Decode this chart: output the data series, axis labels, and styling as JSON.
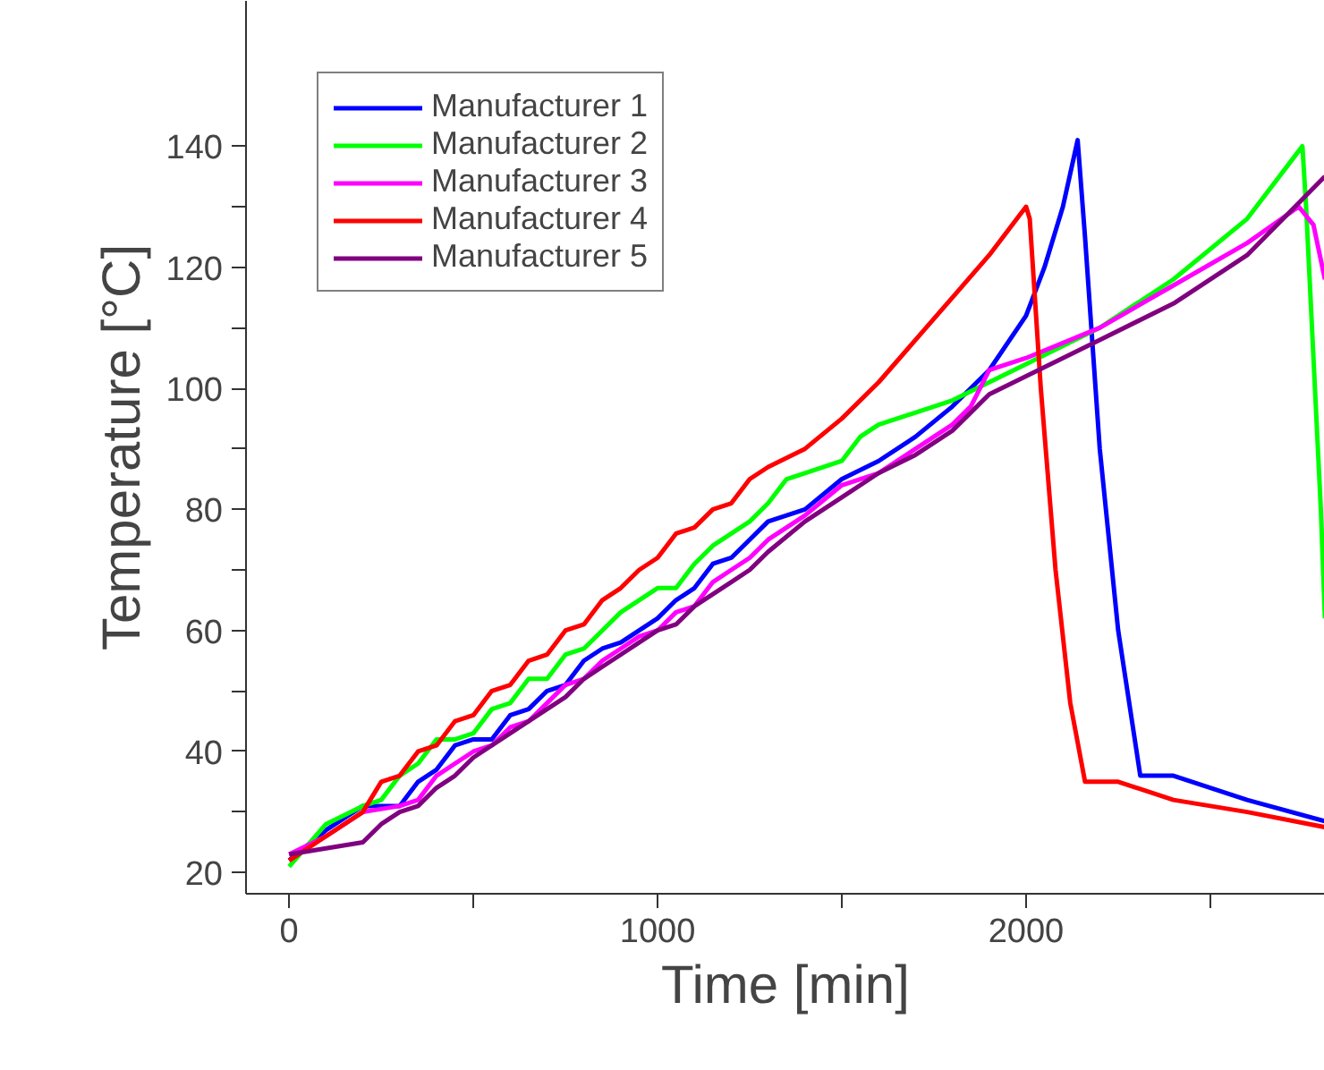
{
  "chart_data": {
    "type": "line",
    "xlabel": "Time [min]",
    "ylabel": "Temperature [°C]",
    "xlim": [
      -117,
      2811
    ],
    "ylim": [
      16.5,
      164
    ],
    "xticks": [
      0,
      {
        "value": 500,
        "label": null
      },
      1000,
      {
        "value": 1500,
        "label": null
      },
      2000,
      {
        "value": 2500,
        "label": null
      }
    ],
    "yticks": [
      20,
      {
        "value": 30,
        "label": null
      },
      40,
      {
        "value": 50,
        "label": null
      },
      60,
      {
        "value": 70,
        "label": null
      },
      80,
      {
        "value": 90,
        "label": null
      },
      100,
      {
        "value": 110,
        "label": null
      },
      120,
      {
        "value": 130,
        "label": null
      },
      140
    ],
    "grid": false,
    "legend": "top left",
    "line_style": "solid",
    "marker": "none",
    "series": [
      {
        "name": "Manufacturer 1",
        "color": "#0000ff",
        "x": [
          0,
          100,
          200,
          300,
          350,
          400,
          450,
          500,
          550,
          600,
          650,
          700,
          750,
          800,
          850,
          900,
          950,
          1000,
          1050,
          1100,
          1150,
          1200,
          1250,
          1300,
          1400,
          1500,
          1600,
          1700,
          1800,
          1900,
          2000,
          2050,
          2100,
          2140,
          2160,
          2200,
          2250,
          2310,
          2400,
          2600,
          2811
        ],
        "values": [
          22,
          27,
          31,
          31,
          35,
          37,
          41,
          42,
          42,
          46,
          47,
          50,
          51,
          55,
          57,
          58,
          60,
          62,
          65,
          67,
          71,
          72,
          75,
          78,
          80,
          85,
          88,
          92,
          97,
          103,
          112,
          120,
          130,
          141,
          125,
          90,
          60,
          36,
          36,
          32,
          28.5
        ]
      },
      {
        "name": "Manufacturer 2",
        "color": "#00ff00",
        "x": [
          0,
          100,
          200,
          250,
          300,
          350,
          400,
          450,
          500,
          550,
          600,
          650,
          700,
          750,
          800,
          850,
          900,
          950,
          1000,
          1050,
          1100,
          1150,
          1200,
          1250,
          1300,
          1350,
          1400,
          1500,
          1550,
          1600,
          1800,
          2000,
          2200,
          2400,
          2600,
          2750,
          2760,
          2800,
          2811
        ],
        "values": [
          21,
          28,
          31,
          32,
          36,
          38,
          42,
          42,
          43,
          47,
          48,
          52,
          52,
          56,
          57,
          60,
          63,
          65,
          67,
          67,
          71,
          74,
          76,
          78,
          81,
          85,
          86,
          88,
          92,
          94,
          98,
          104,
          110,
          118,
          128,
          140,
          130,
          80,
          62
        ]
      },
      {
        "name": "Manufacturer 3",
        "color": "#ff00ff",
        "x": [
          0,
          100,
          200,
          300,
          350,
          400,
          450,
          500,
          550,
          600,
          650,
          700,
          750,
          800,
          850,
          900,
          950,
          1000,
          1050,
          1100,
          1150,
          1200,
          1250,
          1300,
          1400,
          1500,
          1600,
          1700,
          1800,
          1850,
          1900,
          2000,
          2200,
          2400,
          2600,
          2740,
          2780,
          2811
        ],
        "values": [
          23,
          26,
          30,
          31,
          32,
          36,
          38,
          40,
          41,
          44,
          45,
          48,
          51,
          52,
          55,
          57,
          59,
          60,
          63,
          64,
          68,
          70,
          72,
          75,
          79,
          84,
          86,
          90,
          94,
          97,
          103,
          105,
          110,
          117,
          124,
          130,
          127,
          118
        ]
      },
      {
        "name": "Manufacturer 4",
        "color": "#ff0000",
        "x": [
          0,
          100,
          200,
          250,
          300,
          350,
          400,
          450,
          500,
          550,
          600,
          650,
          700,
          750,
          800,
          850,
          900,
          950,
          1000,
          1050,
          1100,
          1150,
          1200,
          1250,
          1300,
          1400,
          1500,
          1600,
          1700,
          1800,
          1900,
          2000,
          2010,
          2040,
          2080,
          2120,
          2160,
          2250,
          2400,
          2600,
          2811
        ],
        "values": [
          22,
          26,
          30,
          35,
          36,
          40,
          41,
          45,
          46,
          50,
          51,
          55,
          56,
          60,
          61,
          65,
          67,
          70,
          72,
          76,
          77,
          80,
          81,
          85,
          87,
          90,
          95,
          101,
          108,
          115,
          122,
          130,
          128,
          100,
          70,
          48,
          35,
          35,
          32,
          30,
          27.5
        ]
      },
      {
        "name": "Manufacturer 5",
        "color": "#800080",
        "x": [
          0,
          100,
          200,
          250,
          300,
          350,
          400,
          450,
          500,
          550,
          600,
          650,
          700,
          750,
          800,
          850,
          900,
          950,
          1000,
          1050,
          1100,
          1150,
          1200,
          1250,
          1300,
          1400,
          1500,
          1600,
          1700,
          1800,
          1850,
          1900,
          2000,
          2200,
          2400,
          2600,
          2811
        ],
        "values": [
          23,
          24,
          25,
          28,
          30,
          31,
          34,
          36,
          39,
          41,
          43,
          45,
          47,
          49,
          52,
          54,
          56,
          58,
          60,
          61,
          64,
          66,
          68,
          70,
          73,
          78,
          82,
          86,
          89,
          93,
          96,
          99,
          102,
          108,
          114,
          122,
          135
        ]
      }
    ]
  }
}
